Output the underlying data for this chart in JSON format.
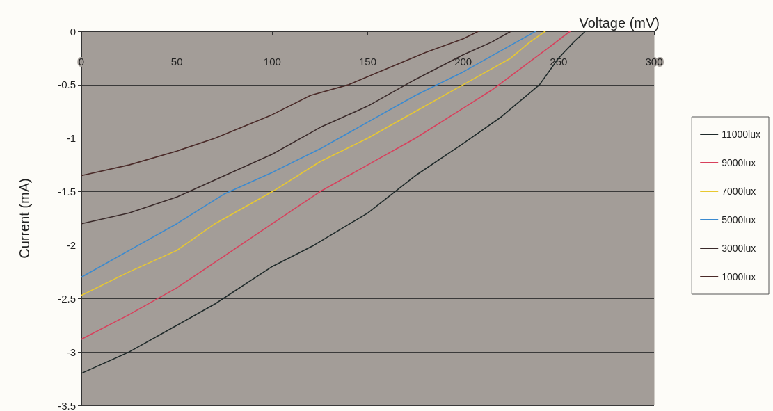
{
  "chart_data": {
    "type": "line",
    "xlabel": "Voltage (mV)",
    "ylabel": "Current (mA)",
    "xlim": [
      0,
      300
    ],
    "xticks": [
      0,
      50,
      100,
      150,
      200,
      250,
      300
    ],
    "ylim": [
      -3.5,
      0
    ],
    "yticks": [
      -3.5,
      -3,
      -2.5,
      -2,
      -1.5,
      -1,
      -0.5,
      0
    ],
    "grid": "y",
    "legend": "right",
    "marker": "none",
    "line_style": "solid",
    "series": [
      {
        "name": "11000lux",
        "color": "#1f2a2a",
        "x": [
          0,
          25,
          50,
          70,
          100,
          122,
          150,
          175,
          200,
          220,
          230,
          240,
          250,
          258,
          264
        ],
        "values": [
          -3.2,
          -3.0,
          -2.75,
          -2.55,
          -2.2,
          -2.0,
          -1.7,
          -1.35,
          -1.05,
          -0.8,
          -0.65,
          -0.5,
          -0.25,
          -0.1,
          0
        ]
      },
      {
        "name": "9000lux",
        "color": "#d8405c",
        "x": [
          0,
          25,
          50,
          75,
          100,
          125,
          150,
          175,
          200,
          215,
          230,
          245,
          256
        ],
        "values": [
          -2.88,
          -2.65,
          -2.4,
          -2.1,
          -1.8,
          -1.5,
          -1.25,
          -1.0,
          -0.72,
          -0.55,
          -0.35,
          -0.15,
          0
        ]
      },
      {
        "name": "7000lux",
        "color": "#e8c830",
        "x": [
          0,
          25,
          50,
          70,
          100,
          125,
          150,
          175,
          200,
          225,
          235,
          243
        ],
        "values": [
          -2.47,
          -2.25,
          -2.05,
          -1.8,
          -1.5,
          -1.22,
          -1.0,
          -0.75,
          -0.5,
          -0.25,
          -0.1,
          0
        ]
      },
      {
        "name": "5000lux",
        "color": "#3a8ad0",
        "x": [
          0,
          25,
          50,
          75,
          100,
          125,
          150,
          175,
          200,
          220,
          238
        ],
        "values": [
          -2.3,
          -2.05,
          -1.8,
          -1.52,
          -1.32,
          -1.1,
          -0.85,
          -0.6,
          -0.38,
          -0.18,
          0
        ]
      },
      {
        "name": "3000lux",
        "color": "#3a2a2a",
        "x": [
          0,
          25,
          50,
          75,
          100,
          125,
          150,
          175,
          200,
          215,
          225
        ],
        "values": [
          -1.8,
          -1.7,
          -1.55,
          -1.35,
          -1.15,
          -0.9,
          -0.7,
          -0.45,
          -0.22,
          -0.1,
          0
        ]
      },
      {
        "name": "1000lux",
        "color": "#4a2a28",
        "x": [
          0,
          25,
          50,
          70,
          100,
          120,
          140,
          160,
          180,
          200,
          208
        ],
        "values": [
          -1.35,
          -1.25,
          -1.12,
          -1.0,
          -0.78,
          -0.6,
          -0.5,
          -0.35,
          -0.2,
          -0.07,
          0
        ]
      }
    ]
  }
}
